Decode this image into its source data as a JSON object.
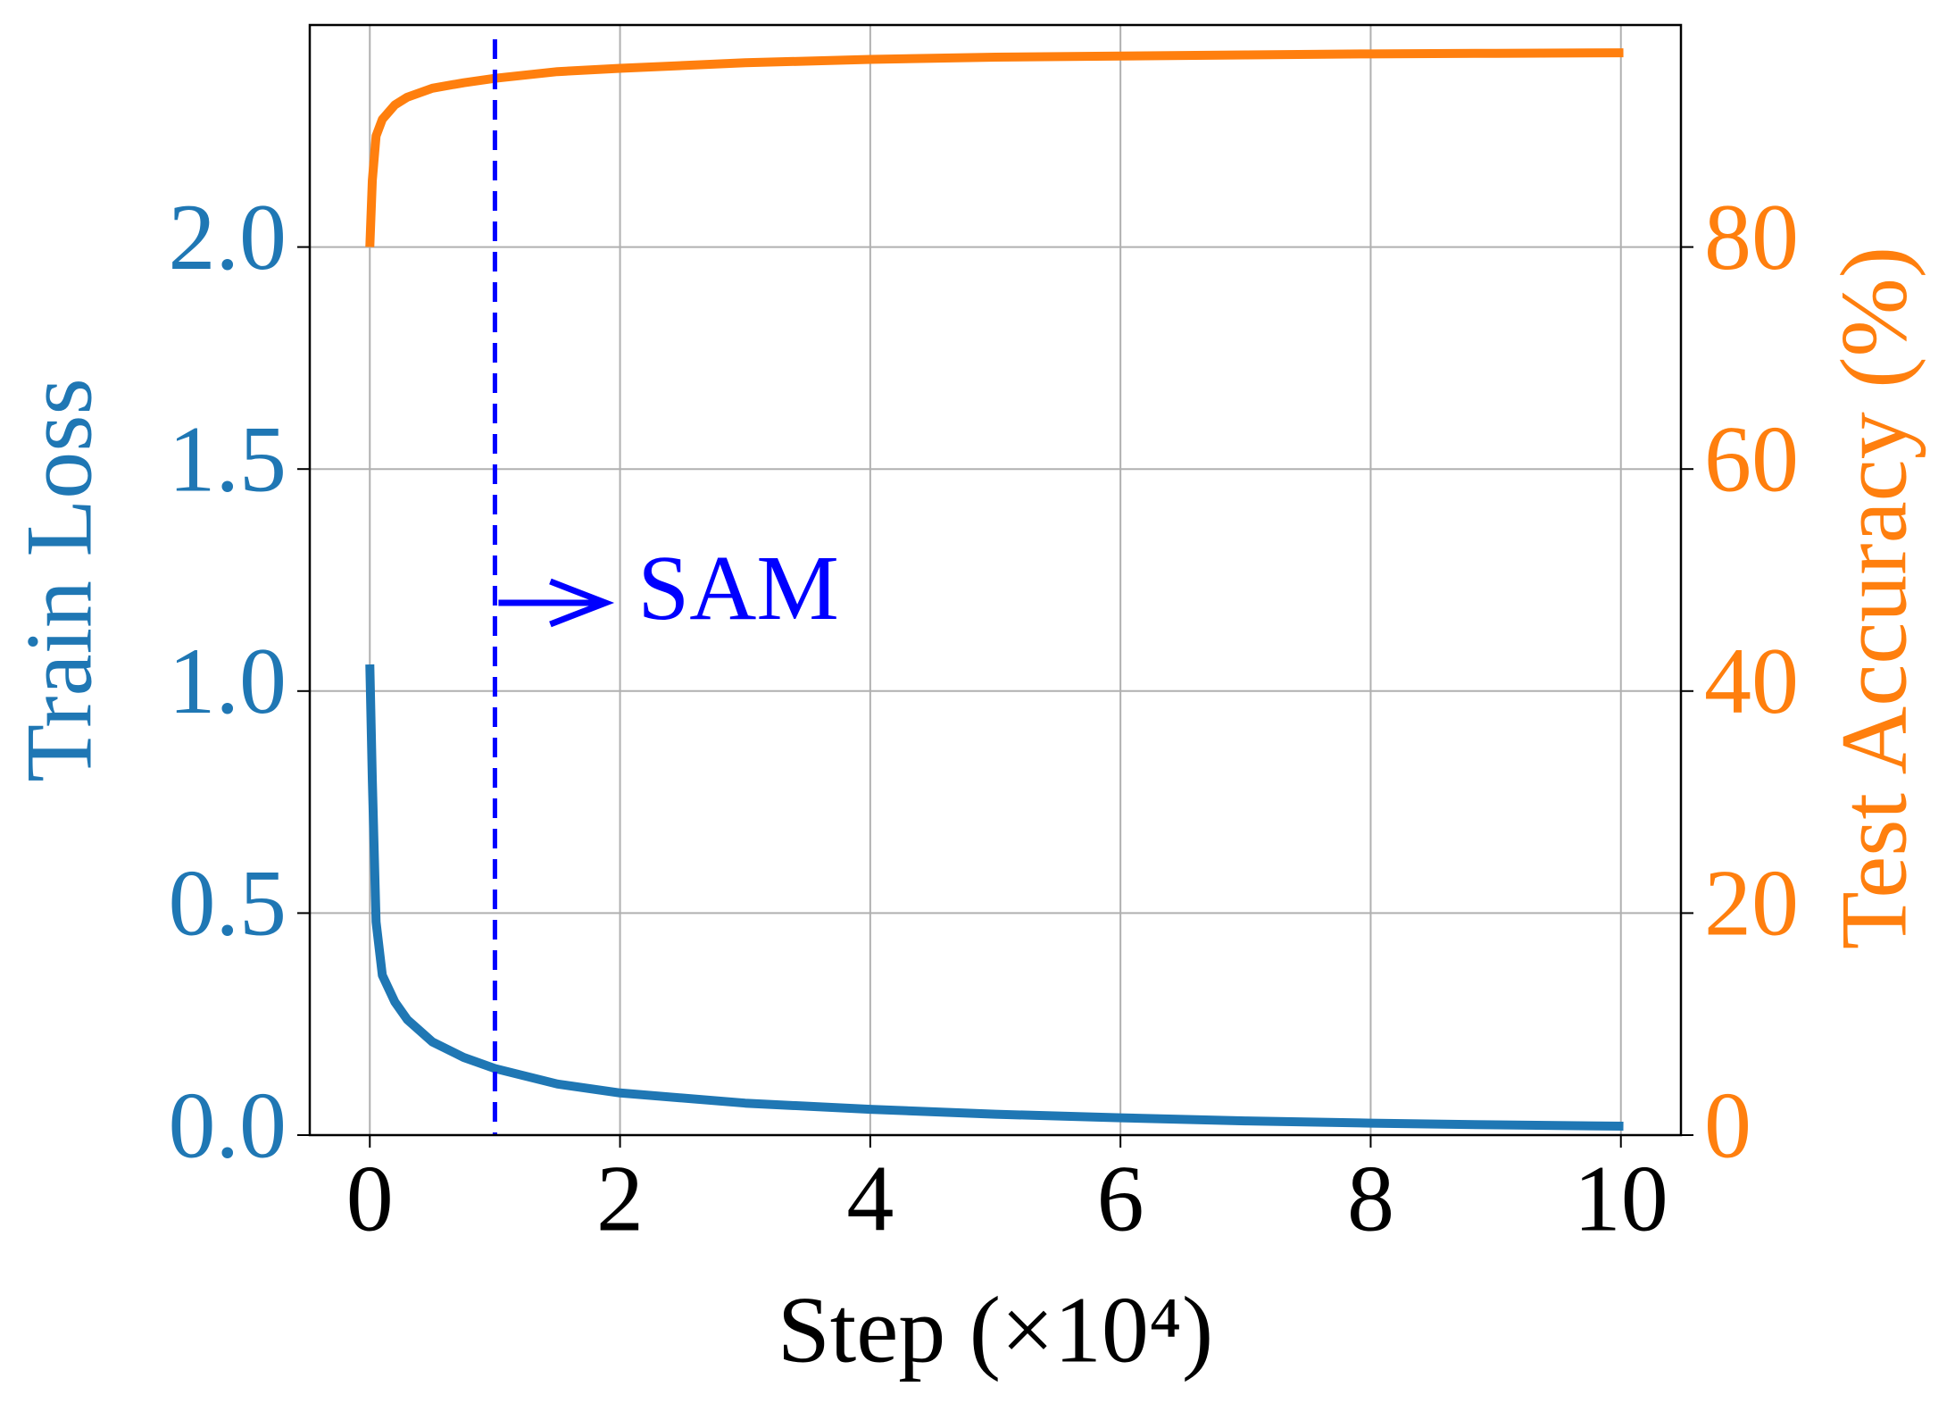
{
  "chart_data": {
    "type": "line",
    "xlabel": "Step (×10⁴)",
    "ylabel": "Train Loss",
    "y2label": "Test Accuracy (%)",
    "x": [
      0,
      0.02,
      0.05,
      0.1,
      0.2,
      0.3,
      0.5,
      0.75,
      1,
      1.5,
      2,
      3,
      4,
      5,
      6,
      7,
      8,
      9,
      10.02
    ],
    "series": [
      {
        "name": "Train Loss",
        "color": "#1f77b4",
        "axis": "y",
        "values": [
          1.06,
          0.8,
          0.48,
          0.36,
          0.3,
          0.26,
          0.21,
          0.175,
          0.15,
          0.115,
          0.095,
          0.072,
          0.058,
          0.047,
          0.039,
          0.032,
          0.027,
          0.023,
          0.02
        ]
      },
      {
        "name": "Test Accuracy (%)",
        "color": "#ff7f0e",
        "axis": "y2",
        "values": [
          80,
          86,
          90,
          91.5,
          92.8,
          93.5,
          94.3,
          94.8,
          95.2,
          95.8,
          96.1,
          96.6,
          96.9,
          97.1,
          97.2,
          97.3,
          97.4,
          97.45,
          97.5
        ]
      }
    ],
    "xlim": [
      -0.48,
      10.48
    ],
    "xticks": [
      0,
      2,
      4,
      6,
      8,
      10
    ],
    "ylim": [
      0,
      2.5
    ],
    "yticks": [
      {
        "value": 0,
        "label": "0.0"
      },
      0.5,
      {
        "value": 1,
        "label": "1.0"
      },
      1.5,
      {
        "value": 2,
        "label": "2.0"
      }
    ],
    "y2lim": [
      0,
      100
    ],
    "y2ticks": [
      0,
      20,
      40,
      60,
      80
    ],
    "grid": true,
    "vline": {
      "x": 1,
      "color": "#0000ff",
      "text": "SAM"
    }
  }
}
